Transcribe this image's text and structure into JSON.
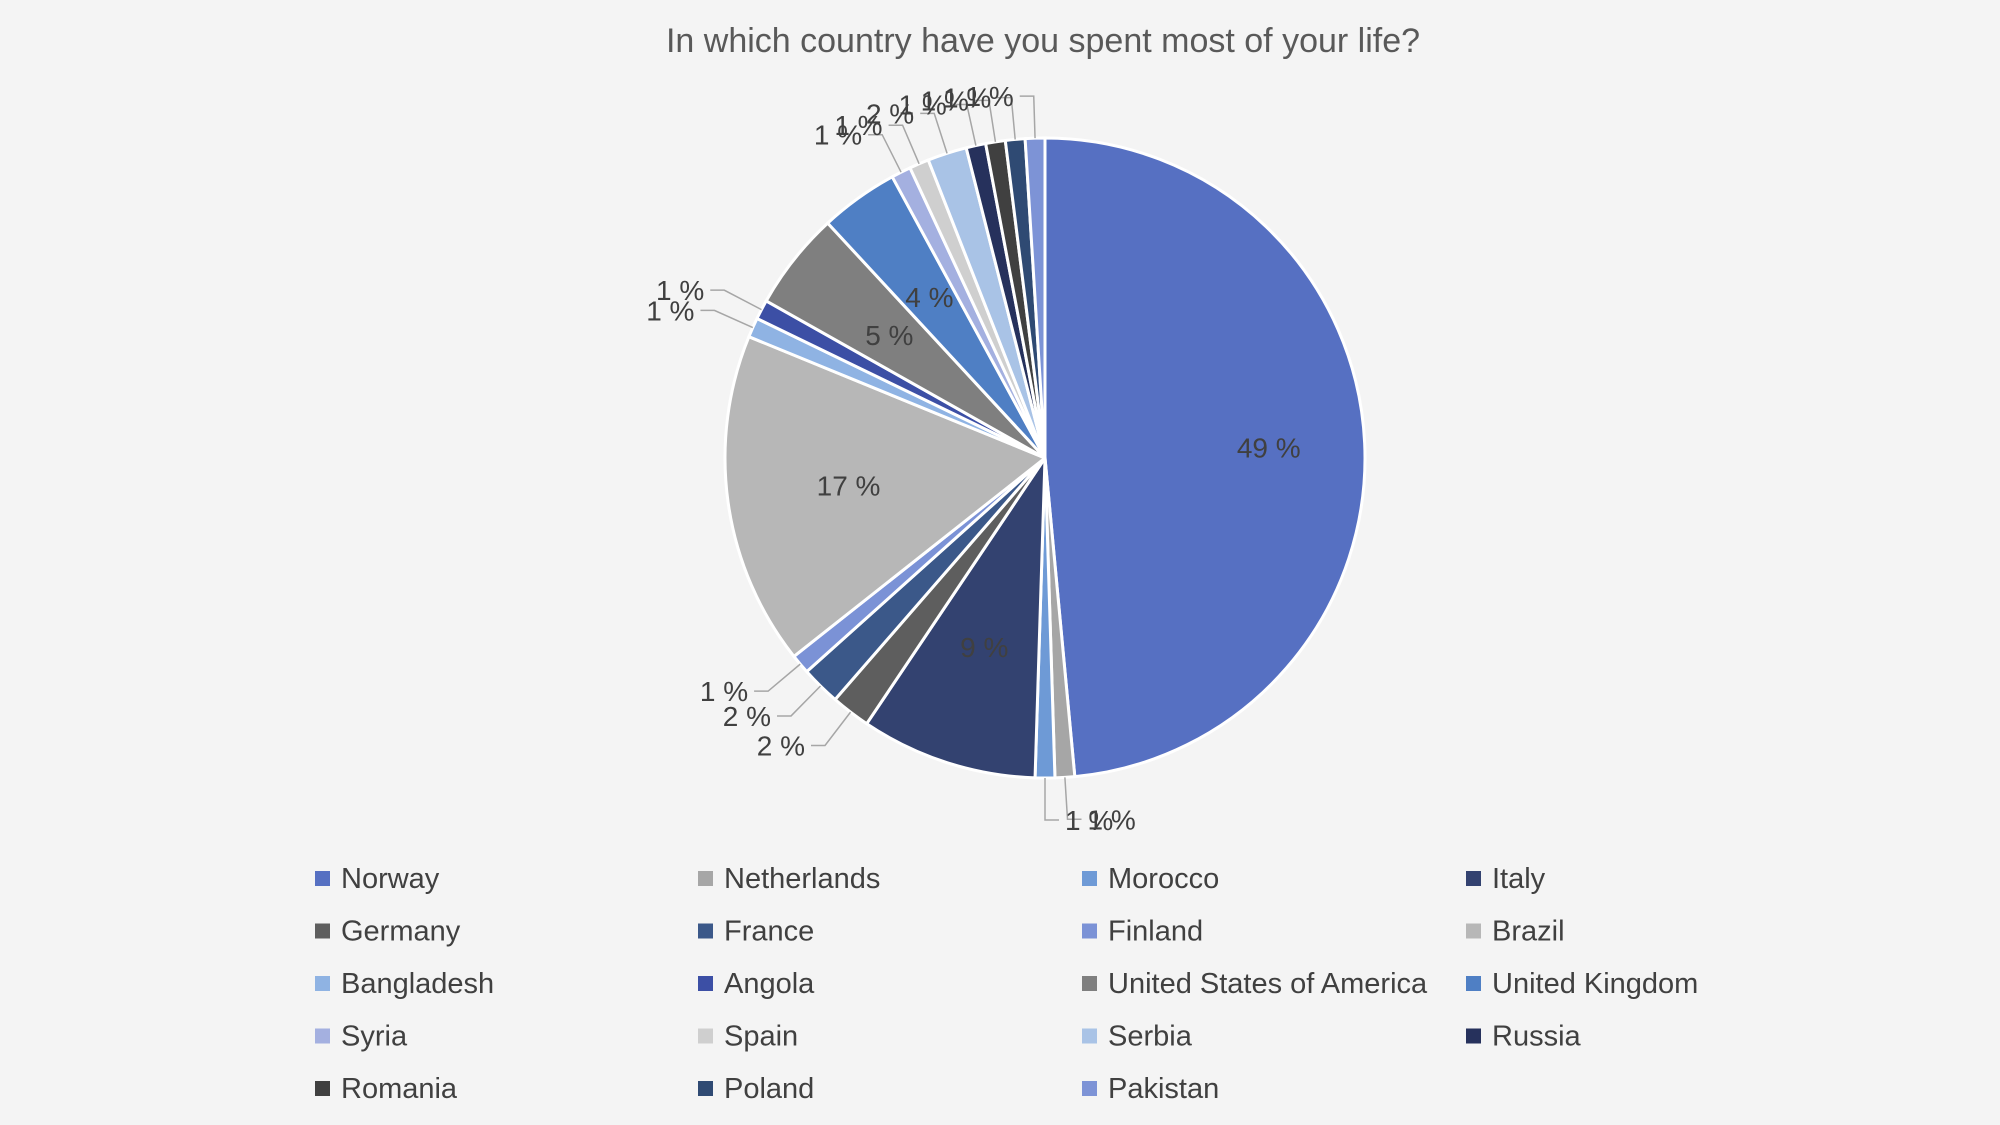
{
  "chart_data": {
    "type": "pie",
    "title": "In which country have you spent most of your life?",
    "unit_suffix": " %",
    "slices": [
      {
        "name": "Norway",
        "value": 49,
        "color": "#5670c2"
      },
      {
        "name": "Netherlands",
        "value": 1,
        "color": "#a6a6a6"
      },
      {
        "name": "Morocco",
        "value": 1,
        "color": "#6e9ad6"
      },
      {
        "name": "Italy",
        "value": 9,
        "color": "#334270"
      },
      {
        "name": "Germany",
        "value": 2,
        "color": "#5e5e5e"
      },
      {
        "name": "France",
        "value": 2,
        "color": "#3b5889"
      },
      {
        "name": "Finland",
        "value": 1,
        "color": "#7b92d6"
      },
      {
        "name": "Brazil",
        "value": 17,
        "color": "#b7b7b7"
      },
      {
        "name": "Bangladesh",
        "value": 1,
        "color": "#8fb3e3"
      },
      {
        "name": "Angola",
        "value": 1,
        "color": "#3c4fa5"
      },
      {
        "name": "United States of America",
        "value": 5,
        "color": "#7f7f7f"
      },
      {
        "name": "United Kingdom",
        "value": 4,
        "color": "#4f7fc4"
      },
      {
        "name": "Syria",
        "value": 1,
        "color": "#a4b0e0"
      },
      {
        "name": "Spain",
        "value": 1,
        "color": "#cfcfcf"
      },
      {
        "name": "Serbia",
        "value": 2,
        "color": "#a9c3e6"
      },
      {
        "name": "Russia",
        "value": 1,
        "color": "#26315c"
      },
      {
        "name": "Romania",
        "value": 1,
        "color": "#404040"
      },
      {
        "name": "Poland",
        "value": 1,
        "color": "#2f4a73"
      },
      {
        "name": "Pakistan",
        "value": 1,
        "color": "#7d93d6"
      }
    ],
    "legend_position": "bottom"
  }
}
